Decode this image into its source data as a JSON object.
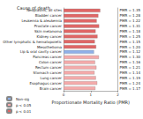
{
  "chart_data": {
    "type": "bar",
    "orientation": "horizontal",
    "stacked": true,
    "data_labels": true,
    "title": "Cause of death",
    "x_label": "Proportionate Mortality Ratio (PMR)",
    "categories": [
      "Neoplasms, all sites",
      "Bladder cancer",
      "Leukemia & aleukemia",
      "Prostate cancer",
      "Skin melanoma",
      "Kidney cancer",
      "Other lymphatic & hematopoietic",
      "Mesothelioma",
      "Lip & oral cavity cancer",
      "Pancreas cancer",
      "Colon cancer",
      "Rectum cancer",
      "Stomach cancer",
      "Lung cancer",
      "Esophagus cancer",
      "Brain cancer"
    ],
    "series": [
      {
        "name": "Non-sig",
        "color": "#8fb0e8",
        "values": [
          null,
          null,
          null,
          null,
          null,
          null,
          null,
          null,
          1.12,
          null,
          null,
          null,
          null,
          null,
          null,
          null
        ],
        "value_labels": [
          null,
          null,
          null,
          null,
          null,
          null,
          null,
          null,
          "PMR = 1.12",
          null,
          null,
          null,
          null,
          null,
          null,
          null
        ]
      },
      {
        "name": "p < 0.05",
        "color": "#f4aaaa",
        "values": [
          null,
          null,
          null,
          null,
          null,
          null,
          null,
          null,
          null,
          1.3,
          1.16,
          1.21,
          1.14,
          1.19,
          1.24,
          1.17
        ],
        "value_labels": [
          null,
          null,
          null,
          null,
          null,
          null,
          null,
          null,
          null,
          "PMR = 1.30",
          "PMR = 1.16",
          "PMR = 1.21",
          "PMR = 1.14",
          "PMR = 1.19",
          "PMR = 1.24",
          "PMR = 1.17"
        ]
      },
      {
        "name": "p < 0.01",
        "color": "#e06666",
        "values": [
          1.35,
          1.28,
          1.22,
          1.31,
          1.18,
          1.25,
          1.15,
          1.2,
          null,
          null,
          null,
          null,
          null,
          null,
          null,
          null
        ],
        "value_labels": [
          "PMR = 1.35",
          "PMR = 1.28",
          "PMR = 1.22",
          "PMR = 1.31",
          "PMR = 1.18",
          "PMR = 1.25",
          "PMR = 1.15",
          "PMR = 1.20",
          null,
          null,
          null,
          null,
          null,
          null,
          null,
          null
        ]
      }
    ],
    "xlim": [
      0,
      2
    ],
    "xticks": [
      0,
      1,
      2
    ],
    "legend": "bottom-left",
    "grid": false
  }
}
